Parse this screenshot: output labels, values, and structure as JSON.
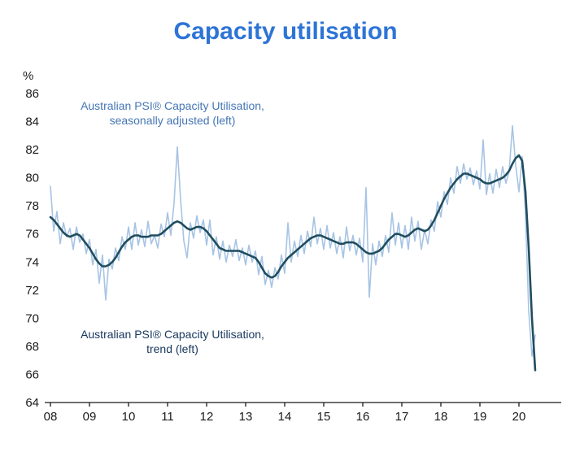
{
  "title": "Capacity utilisation",
  "colors": {
    "title": "#2e74d6",
    "axis": "#1a1a1a",
    "seasonally_adjusted_line": "#a7c4e4",
    "trend_line": "#1f4d5f"
  },
  "annotations": {
    "seasonally_adjusted": {
      "line1": "Australian PSI® Capacity Utilisation,",
      "line2": "seasonally adjusted (left)",
      "color": "#4576b5"
    },
    "trend": {
      "line1": "Australian PSI® Capacity Utilisation,",
      "line2": "trend (left)",
      "color": "#17375e"
    }
  },
  "chart_data": {
    "type": "line",
    "title": "Capacity utilisation",
    "xlabel": "",
    "ylabel": "%",
    "ylim": [
      64,
      86
    ],
    "grid": false,
    "legend_position": "in-plot text annotations",
    "y_ticks": [
      64,
      66,
      68,
      70,
      72,
      74,
      76,
      78,
      80,
      82,
      84,
      86
    ],
    "x_start": 2008,
    "points_per_year": 12,
    "x_ticks": [
      {
        "t": 2008,
        "label": "08"
      },
      {
        "t": 2009,
        "label": "09"
      },
      {
        "t": 2010,
        "label": "10"
      },
      {
        "t": 2011,
        "label": "11"
      },
      {
        "t": 2012,
        "label": "12"
      },
      {
        "t": 2013,
        "label": "13"
      },
      {
        "t": 2014,
        "label": "14"
      },
      {
        "t": 2015,
        "label": "15"
      },
      {
        "t": 2016,
        "label": "16"
      },
      {
        "t": 2017,
        "label": "17"
      },
      {
        "t": 2018,
        "label": "18"
      },
      {
        "t": 2019,
        "label": "19"
      },
      {
        "t": 2020,
        "label": "20"
      }
    ],
    "series": [
      {
        "name": "Australian PSI® Capacity Utilisation, seasonally adjusted (left)",
        "color": "#a7c4e4",
        "stroke_width": 1.6,
        "values": [
          79.4,
          76.2,
          77.6,
          75.3,
          76.8,
          75.8,
          76.4,
          74.9,
          76.5,
          75.4,
          76.0,
          74.6,
          75.6,
          73.8,
          74.9,
          72.5,
          74.5,
          71.3,
          74.2,
          73.5,
          75.0,
          74.1,
          75.8,
          74.9,
          76.5,
          74.9,
          76.8,
          75.2,
          76.3,
          75.1,
          76.9,
          75.3,
          75.9,
          75.0,
          76.7,
          75.8,
          77.5,
          75.9,
          78.2,
          82.2,
          78.5,
          75.5,
          74.3,
          76.8,
          75.7,
          77.3,
          76.1,
          77.0,
          75.2,
          77.0,
          74.5,
          75.8,
          74.2,
          75.5,
          74.0,
          75.2,
          74.4,
          75.6,
          74.1,
          75.0,
          73.8,
          75.2,
          74.0,
          74.8,
          73.1,
          74.4,
          72.4,
          73.4,
          72.2,
          73.6,
          72.8,
          74.5,
          73.2,
          76.8,
          74.0,
          75.5,
          74.4,
          75.9,
          74.6,
          76.2,
          75.1,
          77.2,
          75.3,
          76.4,
          74.9,
          76.6,
          75.0,
          76.1,
          74.6,
          75.8,
          74.3,
          76.5,
          74.8,
          75.9,
          74.5,
          75.7,
          74.0,
          79.3,
          71.5,
          75.3,
          73.8,
          75.5,
          74.4,
          75.9,
          74.7,
          77.5,
          75.2,
          76.8,
          75.0,
          76.6,
          74.9,
          77.2,
          75.5,
          76.9,
          74.9,
          76.3,
          75.3,
          77.0,
          76.2,
          78.3,
          77.2,
          79.0,
          78.1,
          80.0,
          78.9,
          80.8,
          79.6,
          81.0,
          79.9,
          80.7,
          79.5,
          80.5,
          79.2,
          82.7,
          78.8,
          80.3,
          78.9,
          80.6,
          79.3,
          80.8,
          79.6,
          80.5,
          83.7,
          80.9,
          79.0,
          81.5,
          77.5,
          70.5,
          67.3,
          68.8
        ]
      },
      {
        "name": "Australian PSI® Capacity Utilisation, trend (left)",
        "color": "#1f4d5f",
        "stroke_width": 2.6,
        "values": [
          77.2,
          77.0,
          76.7,
          76.4,
          76.1,
          75.9,
          75.8,
          75.9,
          76.0,
          75.9,
          75.6,
          75.3,
          75.0,
          74.6,
          74.2,
          73.9,
          73.7,
          73.7,
          73.8,
          74.0,
          74.3,
          74.7,
          75.1,
          75.4,
          75.6,
          75.8,
          75.9,
          75.9,
          75.8,
          75.8,
          75.8,
          75.9,
          75.9,
          75.9,
          76.0,
          76.2,
          76.4,
          76.6,
          76.8,
          76.9,
          76.8,
          76.6,
          76.4,
          76.3,
          76.4,
          76.5,
          76.5,
          76.4,
          76.2,
          75.9,
          75.6,
          75.3,
          75.0,
          74.9,
          74.8,
          74.8,
          74.8,
          74.8,
          74.8,
          74.7,
          74.6,
          74.5,
          74.4,
          74.3,
          74.0,
          73.6,
          73.2,
          73.0,
          72.9,
          73.0,
          73.3,
          73.7,
          74.0,
          74.3,
          74.5,
          74.7,
          74.9,
          75.1,
          75.3,
          75.5,
          75.7,
          75.8,
          75.9,
          75.9,
          75.8,
          75.7,
          75.6,
          75.5,
          75.4,
          75.3,
          75.3,
          75.4,
          75.4,
          75.4,
          75.3,
          75.1,
          74.9,
          74.7,
          74.6,
          74.6,
          74.7,
          74.8,
          75.0,
          75.3,
          75.6,
          75.8,
          76.0,
          76.0,
          75.9,
          75.8,
          75.9,
          76.1,
          76.3,
          76.4,
          76.3,
          76.2,
          76.3,
          76.6,
          77.0,
          77.5,
          78.0,
          78.5,
          78.9,
          79.3,
          79.6,
          79.9,
          80.1,
          80.3,
          80.3,
          80.2,
          80.1,
          80.0,
          79.9,
          79.7,
          79.6,
          79.6,
          79.7,
          79.8,
          79.9,
          80.0,
          80.2,
          80.5,
          81.0,
          81.4,
          81.6,
          81.2,
          79.0,
          75.0,
          70.0,
          66.3
        ]
      }
    ]
  }
}
